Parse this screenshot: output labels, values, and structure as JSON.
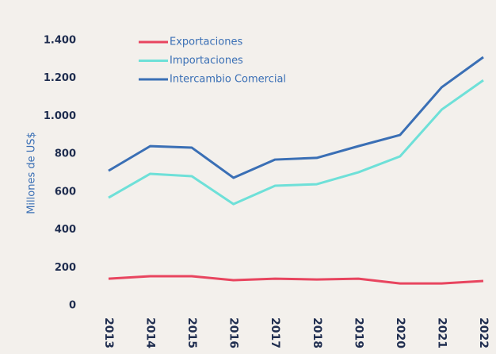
{
  "chart_data": {
    "type": "line",
    "y_label": "Millones de US$",
    "categories": [
      "2013",
      "2014",
      "2015",
      "2016",
      "2017",
      "2018",
      "2019",
      "2020",
      "2021",
      "2022"
    ],
    "series": [
      {
        "name": "Exportaciones",
        "color": "#e8455f",
        "values": [
          142,
          155,
          155,
          134,
          142,
          138,
          142,
          117,
          117,
          130
        ]
      },
      {
        "name": "Importaciones",
        "color": "#6ee0d8",
        "values": [
          570,
          696,
          683,
          536,
          633,
          641,
          704,
          788,
          1035,
          1190
        ]
      },
      {
        "name": "Intercambio Comercial",
        "color": "#3a6fb5",
        "values": [
          712,
          842,
          834,
          675,
          771,
          780,
          842,
          901,
          1153,
          1312
        ]
      }
    ],
    "ylim": [
      0,
      1400
    ],
    "yticks": [
      0,
      200,
      400,
      600,
      800,
      {
        "value": 1000,
        "label": "1.000"
      },
      {
        "value": 1200,
        "label": "1.200"
      },
      {
        "value": 1400,
        "label": "1.400"
      }
    ],
    "legend": "top-left"
  }
}
